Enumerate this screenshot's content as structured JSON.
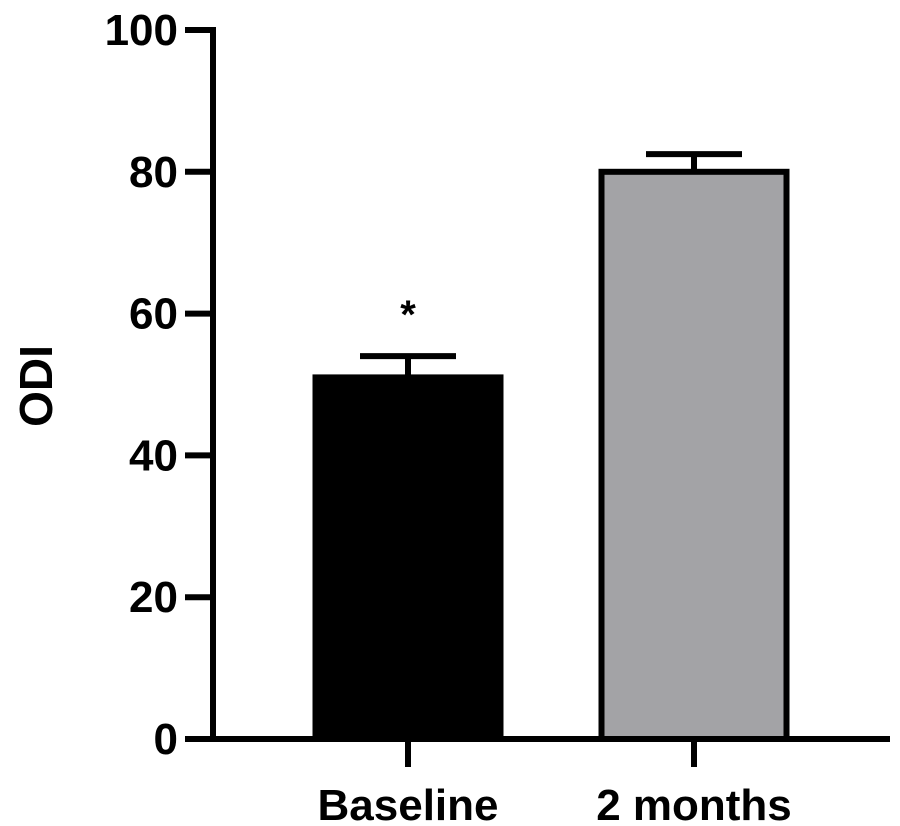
{
  "chart_data": {
    "type": "bar",
    "categories": [
      "Baseline",
      "2 months"
    ],
    "values": [
      51,
      80
    ],
    "errors": [
      3,
      2.5
    ],
    "colors": [
      "#000000",
      "#a3a3a6"
    ],
    "annotations": [
      "*",
      ""
    ],
    "title": "",
    "xlabel": "",
    "ylabel": "ODI",
    "ylim": [
      0,
      100
    ],
    "yticks": [
      "0",
      "20",
      "40",
      "60",
      "80",
      "100"
    ],
    "grid": false
  }
}
